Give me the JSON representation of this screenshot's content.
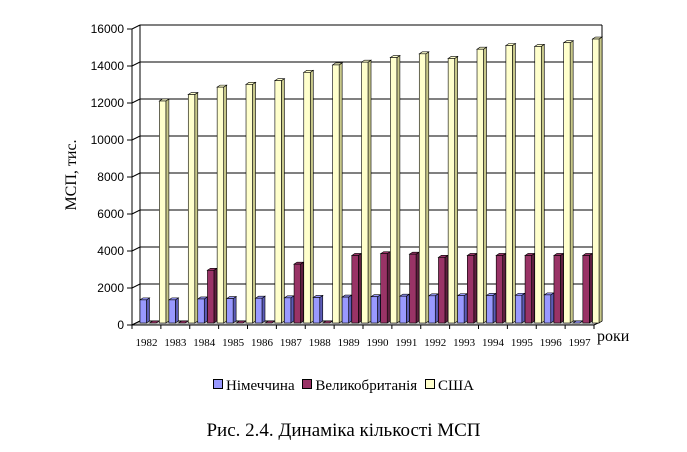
{
  "chart_data": {
    "type": "bar",
    "title": "",
    "xlabel": "роки",
    "ylabel": "МСП, тис.",
    "ylim": [
      0,
      16000
    ],
    "yticks": [
      "0",
      "2000",
      "4000",
      "6000",
      "8000",
      "10000",
      "12000",
      "14000",
      "16000"
    ],
    "grid": true,
    "legend_position": "bottom",
    "categories": [
      "1982",
      "1983",
      "1984",
      "1985",
      "1986",
      "1987",
      "1988",
      "1989",
      "1990",
      "1991",
      "1992",
      "1993",
      "1994",
      "1995",
      "1996",
      "1997"
    ],
    "series": [
      {
        "name": "Німеччина",
        "color": "#9999ff",
        "values": [
          1250,
          1250,
          1300,
          1320,
          1340,
          1360,
          1380,
          1400,
          1420,
          1450,
          1470,
          1480,
          1490,
          1500,
          1520,
          0
        ]
      },
      {
        "name": "Великобританія",
        "color": "#993366",
        "values": [
          0,
          0,
          2850,
          0,
          0,
          3180,
          0,
          3650,
          3750,
          3720,
          3550,
          3650,
          3650,
          3650,
          3650,
          3650
        ]
      },
      {
        "name": "США",
        "color": "#ffffcc",
        "values": [
          12000,
          12350,
          12750,
          12900,
          13100,
          13550,
          13950,
          14100,
          14350,
          14550,
          14300,
          14800,
          15000,
          14950,
          15150,
          15350
        ]
      }
    ]
  },
  "caption": "Рис. 2.4. Динаміка кількості МСП"
}
